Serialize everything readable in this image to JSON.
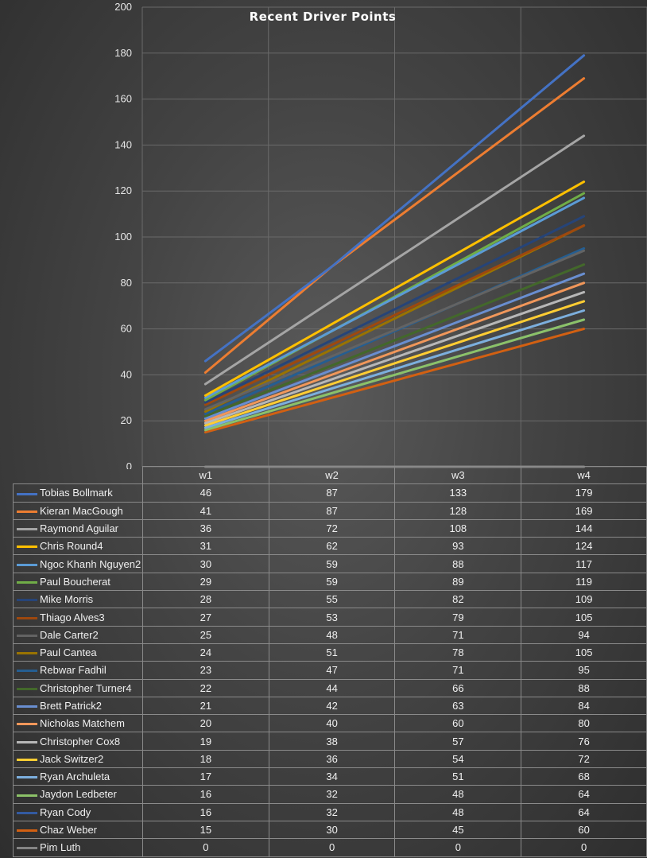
{
  "chart_data": {
    "type": "line",
    "title": "Recent Driver Points",
    "categories": [
      "w1",
      "w2",
      "w3",
      "w4"
    ],
    "ylim": [
      0,
      200
    ],
    "yticks": [
      0,
      20,
      40,
      60,
      80,
      100,
      120,
      140,
      160,
      180,
      200
    ],
    "grid": true,
    "legend": "data-table",
    "series": [
      {
        "name": "Tobias Bollmark",
        "color": "#4472c4",
        "values": [
          46,
          87,
          133,
          179
        ]
      },
      {
        "name": "Kieran MacGough",
        "color": "#ed7d31",
        "values": [
          41,
          87,
          128,
          169
        ]
      },
      {
        "name": "Raymond Aguilar",
        "color": "#a5a5a5",
        "values": [
          36,
          72,
          108,
          144
        ]
      },
      {
        "name": "Chris Round4",
        "color": "#ffc000",
        "values": [
          31,
          62,
          93,
          124
        ]
      },
      {
        "name": "Ngoc Khanh Nguyen2",
        "color": "#5b9bd5",
        "values": [
          30,
          59,
          88,
          117
        ]
      },
      {
        "name": "Paul Boucherat",
        "color": "#70ad47",
        "values": [
          29,
          59,
          89,
          119
        ]
      },
      {
        "name": "Mike Morris",
        "color": "#264478",
        "values": [
          28,
          55,
          82,
          109
        ]
      },
      {
        "name": "Thiago Alves3",
        "color": "#9e480e",
        "values": [
          27,
          53,
          79,
          105
        ]
      },
      {
        "name": "Dale Carter2",
        "color": "#636363",
        "values": [
          25,
          48,
          71,
          94
        ]
      },
      {
        "name": "Paul Cantea",
        "color": "#997300",
        "values": [
          24,
          51,
          78,
          105
        ]
      },
      {
        "name": "Rebwar Fadhil",
        "color": "#255e91",
        "values": [
          23,
          47,
          71,
          95
        ]
      },
      {
        "name": "Christopher Turner4",
        "color": "#43682b",
        "values": [
          22,
          44,
          66,
          88
        ]
      },
      {
        "name": "Brett Patrick2",
        "color": "#698ed0",
        "values": [
          21,
          42,
          63,
          84
        ]
      },
      {
        "name": "Nicholas Matchem",
        "color": "#f1975a",
        "values": [
          20,
          40,
          60,
          80
        ]
      },
      {
        "name": "Christopher Cox8",
        "color": "#b7b7b7",
        "values": [
          19,
          38,
          57,
          76
        ]
      },
      {
        "name": "Jack Switzer2",
        "color": "#ffcd33",
        "values": [
          18,
          36,
          54,
          72
        ]
      },
      {
        "name": "Ryan Archuleta",
        "color": "#7cafdd",
        "values": [
          17,
          34,
          51,
          68
        ]
      },
      {
        "name": "Jaydon Ledbeter",
        "color": "#8cc168",
        "values": [
          16,
          32,
          48,
          64
        ]
      },
      {
        "name": "Ryan Cody",
        "color": "#335aa1",
        "values": [
          16,
          32,
          48,
          64
        ]
      },
      {
        "name": "Chaz Weber",
        "color": "#d26012",
        "values": [
          15,
          30,
          45,
          60
        ]
      },
      {
        "name": "Pim Luth",
        "color": "#848484",
        "values": [
          0,
          0,
          0,
          0
        ]
      }
    ]
  }
}
